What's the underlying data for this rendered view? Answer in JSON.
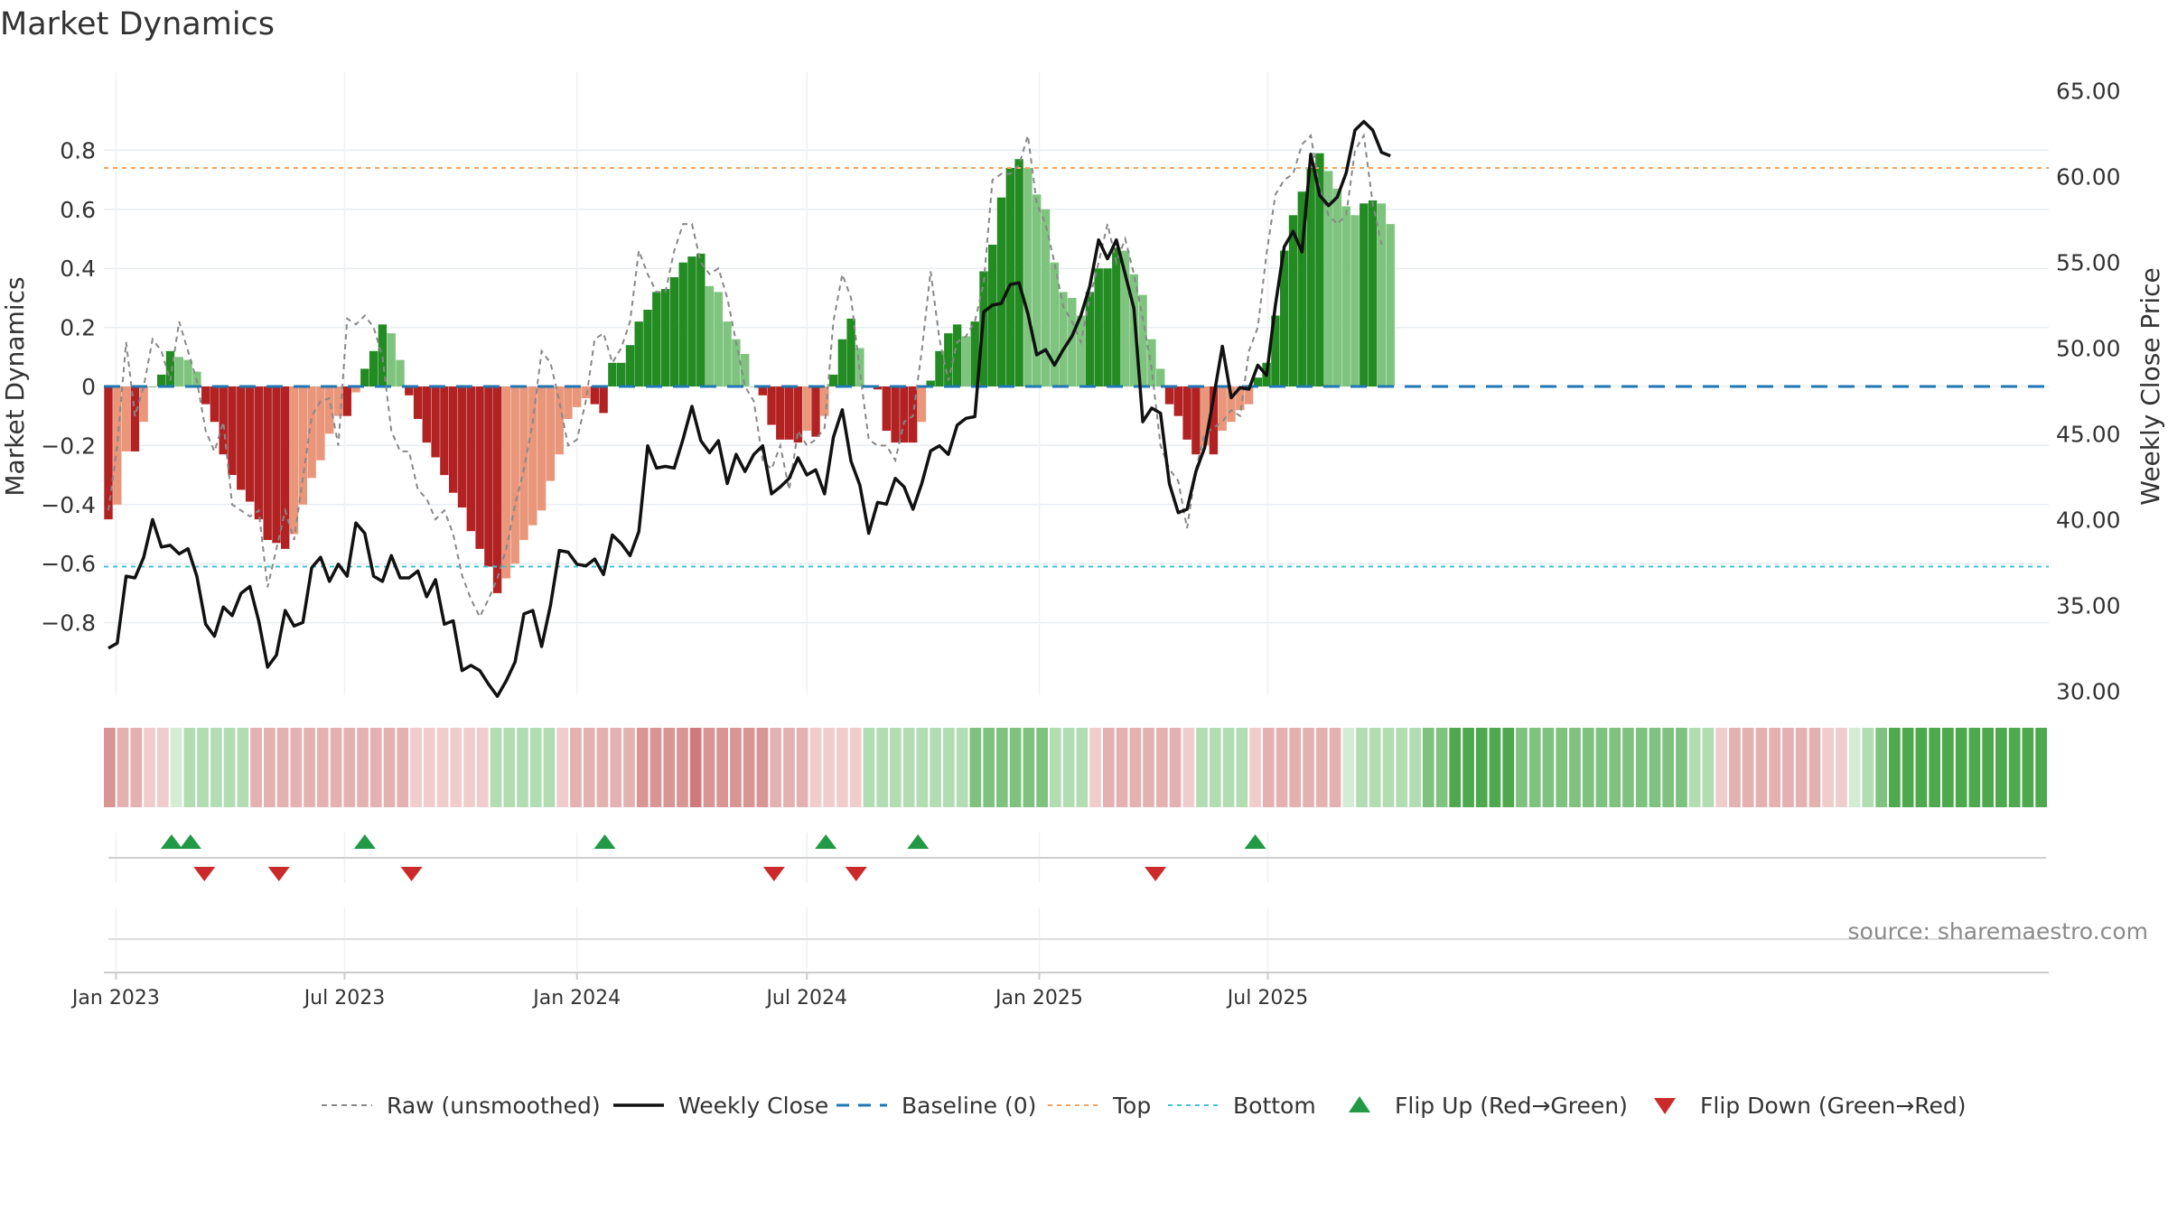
{
  "title": "Market Dynamics",
  "source": "source: sharemaestro.com",
  "colors": {
    "strong_green": "#228b22",
    "light_green": "#7ec47e",
    "strong_red": "#b22222",
    "light_red": "#e9967a",
    "raw_line": "#888888",
    "close_line": "#111111",
    "baseline": "#1f77b4",
    "top_line": "#f4a460",
    "bottom_line": "#40c4d0",
    "flip_up": "#229944",
    "flip_down": "#cc2a2a"
  },
  "legend": [
    {
      "key": "raw",
      "label": "Raw (unsmoothed)"
    },
    {
      "key": "close",
      "label": "Weekly Close"
    },
    {
      "key": "baseline",
      "label": "Baseline (0)"
    },
    {
      "key": "top",
      "label": "Top"
    },
    {
      "key": "bottom",
      "label": "Bottom"
    },
    {
      "key": "flip_up",
      "label": "Flip Up (Red→Green)"
    },
    {
      "key": "flip_down",
      "label": "Flip Down (Green→Red)"
    }
  ],
  "chart_data": {
    "type": "bar",
    "title": "Market Dynamics",
    "x_start": "2022-12-26",
    "x_step_days": 7,
    "x_ticks": [
      {
        "date": "2023-01-01",
        "label": "Jan 2023"
      },
      {
        "date": "2023-07-01",
        "label": "Jul 2023"
      },
      {
        "date": "2024-01-01",
        "label": "Jan 2024"
      },
      {
        "date": "2024-07-01",
        "label": "Jul 2024"
      },
      {
        "date": "2025-01-01",
        "label": "Jan 2025"
      },
      {
        "date": "2025-07-01",
        "label": "Jul 2025"
      }
    ],
    "y_left": {
      "label": "Market Dynamics",
      "range": [
        -0.85,
        0.86
      ],
      "ticks": [
        -0.8,
        -0.6,
        -0.4,
        -0.2,
        0,
        0.2,
        0.4,
        0.6,
        0.8
      ],
      "tick_labels": [
        "−0.8",
        "−0.6",
        "−0.4",
        "−0.2",
        "0",
        "0.2",
        "0.4",
        "0.6",
        "0.8"
      ]
    },
    "y_right": {
      "label": "Weekly Close Price",
      "range": [
        28.8,
        66.3
      ],
      "ticks": [
        30,
        35,
        40,
        45,
        50,
        55,
        60,
        65
      ],
      "tick_labels": [
        "30.00",
        "35.00",
        "40.00",
        "45.00",
        "50.00",
        "55.00",
        "60.00",
        "65.00"
      ]
    },
    "top_level": 0.74,
    "bottom_level": -0.61,
    "baseline_level": 0,
    "series": [
      {
        "name": "Market Dynamics",
        "values": [
          -0.45,
          -0.4,
          -0.22,
          -0.22,
          -0.12,
          0.0,
          0.04,
          0.12,
          0.1,
          0.09,
          0.05,
          -0.06,
          -0.12,
          -0.23,
          -0.3,
          -0.35,
          -0.39,
          -0.45,
          -0.52,
          -0.53,
          -0.55,
          -0.5,
          -0.4,
          -0.31,
          -0.25,
          -0.16,
          -0.1,
          -0.1,
          -0.02,
          0.06,
          0.12,
          0.21,
          0.18,
          0.09,
          -0.03,
          -0.11,
          -0.19,
          -0.24,
          -0.3,
          -0.36,
          -0.41,
          -0.49,
          -0.55,
          -0.61,
          -0.7,
          -0.65,
          -0.6,
          -0.52,
          -0.47,
          -0.42,
          -0.32,
          -0.23,
          -0.11,
          -0.07,
          -0.04,
          -0.06,
          -0.09,
          0.08,
          0.08,
          0.14,
          0.22,
          0.26,
          0.32,
          0.33,
          0.37,
          0.42,
          0.44,
          0.45,
          0.34,
          0.32,
          0.22,
          0.16,
          0.11,
          -0.0,
          -0.03,
          -0.13,
          -0.18,
          -0.18,
          -0.19,
          -0.15,
          -0.17,
          -0.1,
          0.04,
          0.16,
          0.23,
          0.13,
          0.0,
          -0.01,
          -0.15,
          -0.19,
          -0.19,
          -0.19,
          -0.12,
          0.02,
          0.12,
          0.18,
          0.21,
          0.17,
          0.22,
          0.39,
          0.48,
          0.64,
          0.74,
          0.77,
          0.74,
          0.65,
          0.6,
          0.42,
          0.32,
          0.3,
          0.24,
          0.32,
          0.4,
          0.4,
          0.47,
          0.46,
          0.38,
          0.31,
          0.16,
          0.06,
          -0.06,
          -0.1,
          -0.18,
          -0.23,
          -0.2,
          -0.23,
          -0.15,
          -0.12,
          -0.08,
          -0.06,
          0.03,
          0.08,
          0.24,
          0.46,
          0.58,
          0.66,
          0.74,
          0.79,
          0.73,
          0.67,
          0.61,
          0.58,
          0.62,
          0.63,
          0.62,
          0.55
        ]
      },
      {
        "name": "Raw (unsmoothed)",
        "values": [
          -0.42,
          -0.2,
          0.15,
          -0.1,
          0.0,
          0.16,
          0.12,
          0.02,
          0.22,
          0.12,
          0.02,
          -0.15,
          -0.22,
          -0.12,
          -0.4,
          -0.42,
          -0.44,
          -0.42,
          -0.68,
          -0.55,
          -0.42,
          -0.52,
          -0.31,
          -0.1,
          -0.05,
          -0.04,
          -0.2,
          0.23,
          0.21,
          0.24,
          0.2,
          0.1,
          -0.15,
          -0.22,
          -0.22,
          -0.35,
          -0.38,
          -0.45,
          -0.42,
          -0.5,
          -0.64,
          -0.72,
          -0.78,
          -0.72,
          -0.65,
          -0.55,
          -0.4,
          -0.28,
          -0.12,
          0.12,
          0.08,
          -0.05,
          -0.2,
          -0.18,
          -0.05,
          0.16,
          0.18,
          0.08,
          0.13,
          0.22,
          0.46,
          0.38,
          0.32,
          0.32,
          0.46,
          0.55,
          0.55,
          0.42,
          0.38,
          0.4,
          0.3,
          0.15,
          0.0,
          -0.05,
          -0.25,
          -0.28,
          -0.2,
          -0.35,
          -0.15,
          -0.2,
          -0.18,
          -0.14,
          0.22,
          0.38,
          0.3,
          0.05,
          -0.18,
          -0.2,
          -0.2,
          -0.25,
          -0.12,
          -0.1,
          0.12,
          0.39,
          0.16,
          0.02,
          0.15,
          0.17,
          0.22,
          0.35,
          0.7,
          0.72,
          0.72,
          0.75,
          0.85,
          0.62,
          0.55,
          0.42,
          0.27,
          0.22,
          0.15,
          0.3,
          0.42,
          0.55,
          0.42,
          0.5,
          0.38,
          0.23,
          0.06,
          -0.2,
          -0.28,
          -0.32,
          -0.48,
          -0.28,
          -0.16,
          -0.14,
          -0.12,
          -0.08,
          -0.1,
          0.12,
          0.2,
          0.45,
          0.65,
          0.7,
          0.72,
          0.82,
          0.85,
          0.67,
          0.58,
          0.55,
          0.58,
          0.8,
          0.85,
          0.62,
          0.48
        ]
      },
      {
        "name": "Weekly Close",
        "values": [
          32.5,
          32.8,
          36.7,
          36.6,
          37.8,
          40.0,
          38.4,
          38.5,
          38.0,
          38.3,
          36.7,
          33.9,
          33.2,
          34.9,
          34.4,
          35.7,
          36.1,
          34.1,
          31.4,
          32.1,
          34.7,
          33.8,
          34.0,
          37.2,
          37.8,
          36.4,
          37.4,
          36.7,
          39.8,
          39.2,
          36.7,
          36.4,
          37.9,
          36.6,
          36.6,
          37.0,
          35.5,
          36.5,
          33.9,
          34.1,
          31.2,
          31.5,
          31.2,
          30.4,
          29.7,
          30.6,
          31.7,
          34.5,
          34.7,
          32.6,
          35.0,
          38.2,
          38.1,
          37.4,
          37.3,
          37.7,
          36.8,
          39.1,
          38.6,
          37.9,
          39.3,
          44.3,
          43.0,
          43.1,
          43.0,
          44.7,
          46.6,
          44.6,
          43.9,
          44.6,
          42.1,
          43.8,
          42.8,
          43.8,
          44.3,
          41.5,
          41.9,
          42.4,
          43.6,
          42.6,
          42.9,
          41.5,
          44.8,
          46.4,
          43.4,
          42.0,
          39.2,
          41.0,
          40.9,
          42.4,
          41.9,
          40.6,
          42.1,
          44.0,
          44.3,
          43.8,
          45.5,
          45.9,
          46.0,
          52.1,
          52.5,
          52.6,
          53.7,
          53.8,
          52.0,
          49.6,
          49.9,
          49.0,
          49.9,
          50.7,
          51.9,
          53.6,
          56.3,
          55.2,
          56.3,
          54.3,
          52.3,
          45.7,
          46.5,
          46.2,
          42.1,
          40.4,
          40.6,
          42.8,
          44.2,
          47.1,
          50.1,
          47.1,
          47.7,
          47.6,
          49.0,
          48.4,
          52.5,
          55.9,
          56.8,
          55.6,
          61.3,
          58.9,
          58.3,
          58.8,
          60.2,
          62.7,
          63.2,
          62.7,
          61.4,
          61.2
        ]
      }
    ],
    "palette_strip": [
      "r2",
      "r1",
      "r1",
      "r0",
      "r0",
      "g0",
      "g1",
      "g1",
      "g1",
      "g1",
      "g1",
      "r1",
      "r1",
      "r1",
      "r1",
      "r1",
      "r1",
      "r1",
      "r1",
      "r1",
      "r1",
      "r1",
      "r1",
      "r0",
      "r0",
      "r0",
      "r0",
      "r0",
      "r0",
      "g1",
      "g1",
      "g1",
      "g1",
      "g1",
      "r0",
      "r1",
      "r1",
      "r1",
      "r1",
      "r1",
      "r2",
      "r2",
      "r2",
      "r2",
      "r3",
      "r2",
      "r2",
      "r2",
      "r2",
      "r2",
      "r1",
      "r1",
      "r1",
      "r0",
      "r0",
      "r0",
      "r0",
      "g1",
      "g1",
      "g1",
      "g1",
      "g1",
      "g1",
      "g1",
      "g1",
      "g2",
      "g2",
      "g2",
      "g2",
      "g2",
      "g2",
      "g1",
      "g1",
      "g1",
      "r0",
      "r1",
      "r1",
      "r1",
      "r1",
      "r1",
      "r1",
      "r0",
      "g1",
      "g1",
      "g1",
      "g1",
      "r0",
      "r1",
      "r1",
      "r1",
      "r1",
      "r1",
      "r1",
      "g0",
      "g1",
      "g1",
      "g1",
      "g1",
      "g1",
      "g2",
      "g2",
      "g3",
      "g3",
      "g3",
      "g3",
      "g3",
      "g2",
      "g2",
      "g2",
      "g2",
      "g2",
      "g2",
      "g2",
      "g2",
      "g2",
      "g2",
      "g2",
      "g2",
      "g2",
      "g1",
      "g1",
      "r0",
      "r1",
      "r1",
      "r1",
      "r1",
      "r1",
      "r1",
      "r1",
      "r0",
      "r0",
      "g0",
      "g1",
      "g2",
      "g3",
      "g3",
      "g3",
      "g3",
      "g3",
      "g3",
      "g3",
      "g3",
      "g3",
      "g3",
      "g3",
      "g3"
    ],
    "flip_up_dates": [
      "2023-02-14",
      "2023-03-01",
      "2023-07-17",
      "2024-01-23",
      "2024-07-16",
      "2024-09-27",
      "2025-06-21"
    ],
    "flip_down_dates": [
      "2023-03-12",
      "2023-05-10",
      "2023-08-23",
      "2024-06-05",
      "2024-08-09",
      "2025-04-03"
    ]
  }
}
